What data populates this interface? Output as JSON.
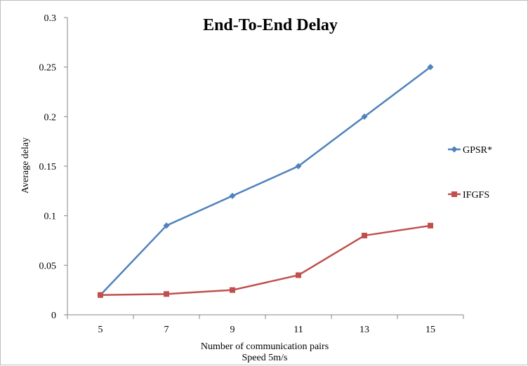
{
  "chart_data": {
    "type": "line",
    "title": "End-To-End Delay",
    "xlabel": "Number of communication pairs",
    "xlabel_sub": "Speed 5m/s",
    "ylabel": "Average delay",
    "categories": [
      "5",
      "7",
      "9",
      "11",
      "13",
      "15"
    ],
    "y_ticks": [
      "0",
      "0.05",
      "0.1",
      "0.15",
      "0.2",
      "0.25",
      "0.3"
    ],
    "ylim": [
      0,
      0.3
    ],
    "grid": false,
    "legend_position": "right",
    "series": [
      {
        "name": "GPSR*",
        "color": "#4f81bd",
        "marker": "diamond",
        "values": [
          0.02,
          0.09,
          0.12,
          0.15,
          0.2,
          0.25
        ]
      },
      {
        "name": "IFGFS",
        "color": "#c0504d",
        "marker": "square",
        "values": [
          0.02,
          0.021,
          0.025,
          0.04,
          0.08,
          0.09
        ]
      }
    ]
  }
}
